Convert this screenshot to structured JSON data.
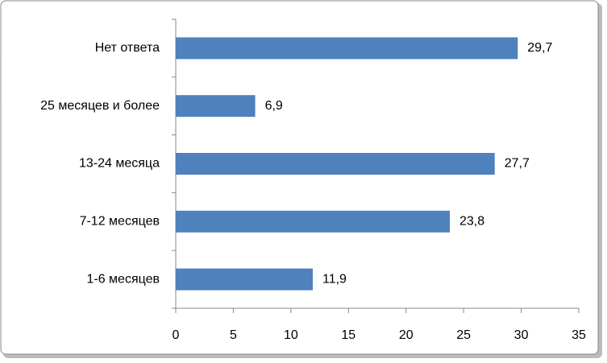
{
  "chart_data": {
    "type": "bar",
    "orientation": "horizontal",
    "categories": [
      "Нет ответа",
      "25 месяцев и более",
      "13-24 месяца",
      "7-12 месяцев",
      "1-6 месяцев"
    ],
    "values": [
      29.7,
      6.9,
      27.7,
      23.8,
      11.9
    ],
    "value_labels": [
      "29,7",
      "6,9",
      "27,7",
      "23,8",
      "11,9"
    ],
    "color": "#4f81bd",
    "xlim": [
      0,
      35
    ],
    "xticks": [
      0,
      5,
      10,
      15,
      20,
      25,
      30,
      35
    ],
    "grid": false
  }
}
